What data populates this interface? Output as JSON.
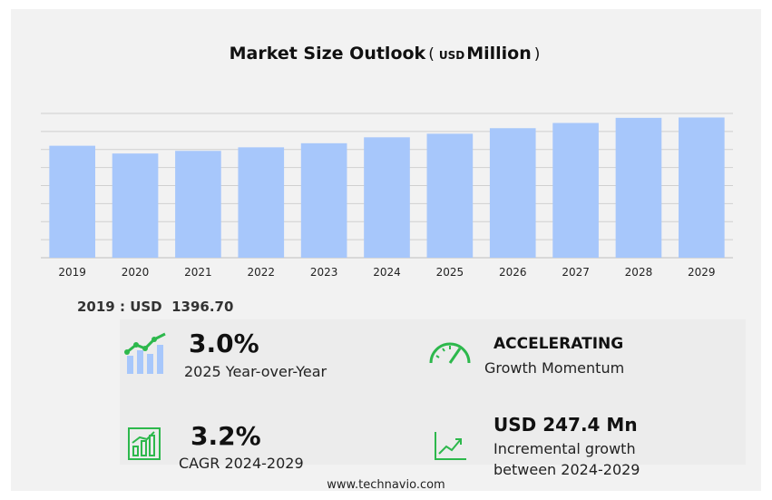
{
  "title": {
    "main": "Market Size Outlook",
    "paren_open": "(",
    "unit": "USD",
    "unit2": "Million",
    "paren_close": ")"
  },
  "base_label": "2019 : USD  1396.70",
  "stats": {
    "yoy": {
      "value": "3.0%",
      "label": "2025 Year-over-Year"
    },
    "momentum": {
      "value": "ACCELERATING",
      "label": "Growth Momentum"
    },
    "cagr": {
      "value": "3.2%",
      "label": "CAGR 2024-2029"
    },
    "incremental": {
      "value": "USD 247.4 Mn",
      "label1": "Incremental growth",
      "label2": "between 2024-2029"
    }
  },
  "footer": "www.technavio.com",
  "icons": [
    "bar-growth-icon",
    "speedometer-icon",
    "cagr-chart-icon",
    "trend-line-icon"
  ],
  "colors": {
    "bar": "#a7c7fb",
    "accent_green": "#2db84c",
    "grid": "#cfcfcf"
  },
  "chart_data": {
    "type": "bar",
    "categories": [
      "2019",
      "2020",
      "2021",
      "2022",
      "2023",
      "2024",
      "2025",
      "2026",
      "2027",
      "2028",
      "2029"
    ],
    "values": [
      1396.7,
      1300.0,
      1333.0,
      1377.0,
      1428.0,
      1502.0,
      1547.0,
      1616.0,
      1681.0,
      1745.0,
      1749.4
    ],
    "title": "Market Size Outlook",
    "unit": "USD Million",
    "ylim": [
      0,
      1800
    ],
    "grid": true,
    "legend": "none"
  }
}
